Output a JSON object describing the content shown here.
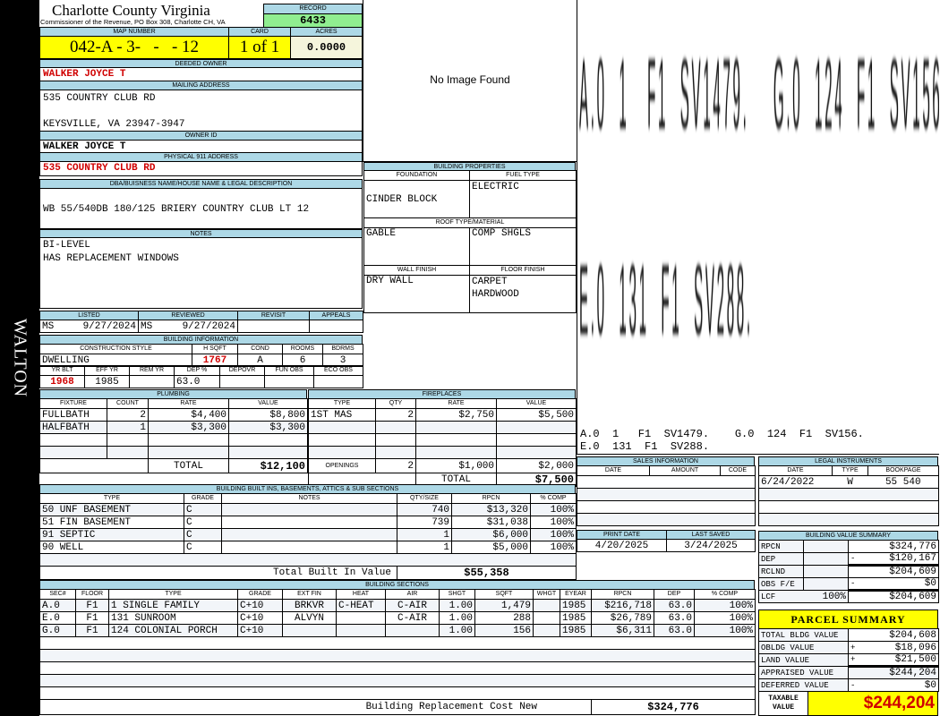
{
  "district": "WALTON",
  "header": {
    "title": "Charlotte County Virginia",
    "subtitle": "Commissioner of the Revenue, PO Box 308, Charlotte CH, VA",
    "record_label": "RECORD",
    "record": "6433"
  },
  "parcel": {
    "map_label": "MAP NUMBER",
    "map": "042-A - 3-   -   - 12",
    "card_label": "CARD",
    "card": "1 of 1",
    "acres_label": "ACRES",
    "acres": "0.0000"
  },
  "owner": {
    "deeded_label": "DEEDED OWNER",
    "deeded": "WALKER JOYCE T",
    "mailing_label": "MAILING ADDRESS",
    "mailing1": "535 COUNTRY CLUB RD",
    "mailing2": "KEYSVILLE, VA 23947-3947",
    "ownerid_label": "OWNER ID",
    "ownerid": "WALKER JOYCE T",
    "physical_label": "PHYSICAL 911 ADDRESS",
    "physical": "535 COUNTRY CLUB RD",
    "dba_label": "DBA/BUISNESS NAME/HOUSE NAME & LEGAL DESCRIPTION",
    "dba": "WB 55/540DB 180/125 BRIERY COUNTRY CLUB LT 12",
    "notes_label": "NOTES",
    "notes1": "BI-LEVEL",
    "notes2": "HAS REPLACEMENT WINDOWS"
  },
  "image": {
    "text": "No Image Found"
  },
  "props": {
    "title": "BUILDING PROPERTIES",
    "foundation_label": "FOUNDATION",
    "foundation": "CINDER BLOCK",
    "fuel_label": "FUEL TYPE",
    "fuel": "ELECTRIC",
    "roof_label": "ROOF TYPE/MATERIAL",
    "roof1": "GABLE",
    "roof2": "COMP SHGLS",
    "wall_label": "WALL FINISH",
    "wall": "DRY WALL",
    "floor_label": "FLOOR FINISH",
    "floor1": "CARPET",
    "floor2": "HARDWOOD"
  },
  "sketch": {
    "line1": "A.0  1   F1  SV1479.    G.0  124  F1  SV156.",
    "line2": "E.0  131  F1  SV288."
  },
  "listing": {
    "h": [
      "LISTED",
      "REVIEWED",
      "REVISIT",
      "APPEALS"
    ],
    "listed_by": "MS",
    "listed": "9/27/2024",
    "reviewed_by": "MS",
    "reviewed": "9/27/2024"
  },
  "bldg": {
    "title": "BUILDING INFORMATION",
    "h1": [
      "CONSTRUCTION STYLE",
      "H SQFT",
      "COND",
      "ROOMS",
      "BDRMS"
    ],
    "style": "DWELLING",
    "hsqft": "1767",
    "cond": "A",
    "rooms": "6",
    "bdrms": "3",
    "h2": [
      "YR BLT",
      "EFF YR",
      "REM YR",
      "DEP %",
      "DEPOVR",
      "FUN OBS",
      "ECO OBS"
    ],
    "yrblt": "1968",
    "effyr": "1985",
    "dep": "63.0"
  },
  "plumbing": {
    "title": "PLUMBING",
    "h": [
      "FIXTURE",
      "COUNT",
      "RATE",
      "VALUE"
    ],
    "rows": [
      [
        "FULLBATH",
        "2",
        "$4,400",
        "$8,800"
      ],
      [
        "HALFBATH",
        "1",
        "$3,300",
        "$3,300"
      ]
    ],
    "total_label": "TOTAL",
    "total": "$12,100"
  },
  "fireplaces": {
    "title": "FIREPLACES",
    "h": [
      "TYPE",
      "QTY",
      "RATE",
      "VALUE"
    ],
    "rows": [
      [
        "1ST MAS",
        "2",
        "$2,750",
        "$5,500"
      ]
    ],
    "openings_label": "OPENINGS",
    "openings": [
      "2",
      "$1,000",
      "$2,000"
    ],
    "total_label": "TOTAL",
    "total": "$7,500"
  },
  "builtins": {
    "title": "BUILDING BUILT INS, BASEMENTS, ATTICS & SUB SECTIONS",
    "h": [
      "TYPE",
      "GRADE",
      "NOTES",
      "QTY/SIZE",
      "RPCN",
      "% COMP"
    ],
    "rows": [
      [
        "50 UNF BASEMENT",
        "C",
        "",
        "740",
        "$13,320",
        "100%"
      ],
      [
        "51 FIN BASEMENT",
        "C",
        "",
        "739",
        "$31,038",
        "100%"
      ],
      [
        "91 SEPTIC",
        "C",
        "",
        "1",
        "$6,000",
        "100%"
      ],
      [
        "90 WELL",
        "C",
        "",
        "1",
        "$5,000",
        "100%"
      ]
    ],
    "total_label": "Total Built In Value",
    "total": "$55,358"
  },
  "sections": {
    "title": "BUILDING SECTIONS",
    "h": [
      "SEC#",
      "FLOOR",
      "TYPE",
      "GRADE",
      "EXT FIN",
      "HEAT",
      "AIR",
      "SHGT",
      "SQFT",
      "WHGT",
      "EYEAR",
      "RPCN",
      "DEP",
      "% COMP"
    ],
    "rows": [
      [
        "A.0",
        "F1",
        "1 SINGLE FAMILY",
        "C+10",
        "BRKVR",
        "C-HEAT",
        "C-AIR",
        "1.00",
        "1,479",
        "",
        "1985",
        "$216,718",
        "63.0",
        "100%"
      ],
      [
        "E.0",
        "F1",
        "131 SUNROOM",
        "C+10",
        "ALVYN",
        "",
        "C-AIR",
        "1.00",
        "288",
        "",
        "1985",
        "$26,789",
        "63.0",
        "100%"
      ],
      [
        "G.0",
        "F1",
        "124 COLONIAL PORCH",
        "C+10",
        "",
        "",
        "",
        "1.00",
        "156",
        "",
        "1985",
        "$6,311",
        "63.0",
        "100%"
      ]
    ],
    "total_label": "Building Replacement Cost New",
    "total": "$324,776"
  },
  "sales": {
    "title": "SALES INFORMATION",
    "h": [
      "DATE",
      "AMOUNT",
      "CODE"
    ]
  },
  "legal": {
    "title": "LEGAL INSTRUMENTS",
    "h": [
      "DATE",
      "TYPE",
      "BOOKPAGE"
    ],
    "rows": [
      [
        "6/24/2022",
        "W",
        "55 540"
      ]
    ]
  },
  "dates": {
    "print_label": "PRINT DATE",
    "print": "4/20/2025",
    "saved_label": "LAST SAVED",
    "saved": "3/24/2025"
  },
  "bvs": {
    "title": "BUILDING VALUE SUMMARY",
    "rows": [
      [
        "RPCN",
        "",
        "",
        "$324,776"
      ],
      [
        "DEP",
        "",
        "-",
        "$120,167"
      ],
      [
        "RCLND",
        "",
        "",
        "$204,609"
      ],
      [
        "OBS F/E",
        "",
        "-",
        "$0"
      ],
      [
        "LCF",
        "100%",
        "",
        "$204,609"
      ]
    ]
  },
  "summary": {
    "title": "PARCEL SUMMARY",
    "rows": [
      [
        "TOTAL BLDG VALUE",
        "",
        "$204,608"
      ],
      [
        "OBLDG VALUE",
        "+",
        "$18,096"
      ],
      [
        "LAND VALUE",
        "+",
        "$21,500"
      ],
      [
        "APPRAISED VALUE",
        "",
        "$244,204"
      ],
      [
        "DEFERRED VALUE",
        "-",
        "$0"
      ]
    ],
    "taxable_label": "TAXABLE VALUE",
    "taxable": "$244,204"
  },
  "colors": {
    "header": "#add8e6",
    "highlight": "#ffff00",
    "record": "#90ee90",
    "alert": "#d00000"
  }
}
